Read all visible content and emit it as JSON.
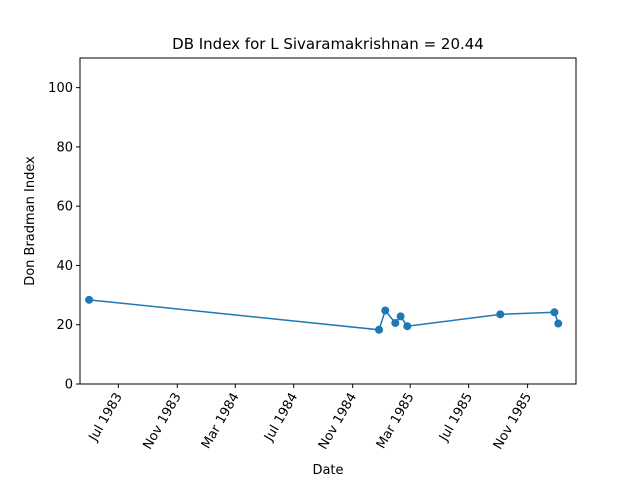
{
  "chart_data": {
    "type": "line",
    "title": "DB Index for L Sivaramakrishnan = 20.44",
    "xlabel": "Date",
    "ylabel": "Don Bradman Index",
    "ylim": [
      0,
      110
    ],
    "xlim": [
      "1983-04-12",
      "1986-02-10"
    ],
    "x_ticks": [
      {
        "date": "1983-07-01",
        "label": "Jul 1983"
      },
      {
        "date": "1983-11-01",
        "label": "Nov 1983"
      },
      {
        "date": "1984-03-01",
        "label": "Mar 1984"
      },
      {
        "date": "1984-07-01",
        "label": "Jul 1984"
      },
      {
        "date": "1984-11-01",
        "label": "Nov 1984"
      },
      {
        "date": "1985-03-01",
        "label": "Mar 1985"
      },
      {
        "date": "1985-07-01",
        "label": "Jul 1985"
      },
      {
        "date": "1985-11-01",
        "label": "Nov 1985"
      }
    ],
    "y_ticks": [
      0,
      20,
      40,
      60,
      80,
      100
    ],
    "grid": false,
    "color": "#1f77b4",
    "series": [
      {
        "points": [
          {
            "x": "1983-05-01",
            "y": 28.4
          },
          {
            "x": "1984-12-26",
            "y": 18.3
          },
          {
            "x": "1985-01-08",
            "y": 24.8
          },
          {
            "x": "1985-01-29",
            "y": 20.6
          },
          {
            "x": "1985-02-09",
            "y": 22.8
          },
          {
            "x": "1985-02-23",
            "y": 19.5
          },
          {
            "x": "1985-09-05",
            "y": 23.5
          },
          {
            "x": "1985-12-27",
            "y": 24.2
          },
          {
            "x": "1986-01-04",
            "y": 20.4
          }
        ]
      }
    ]
  }
}
